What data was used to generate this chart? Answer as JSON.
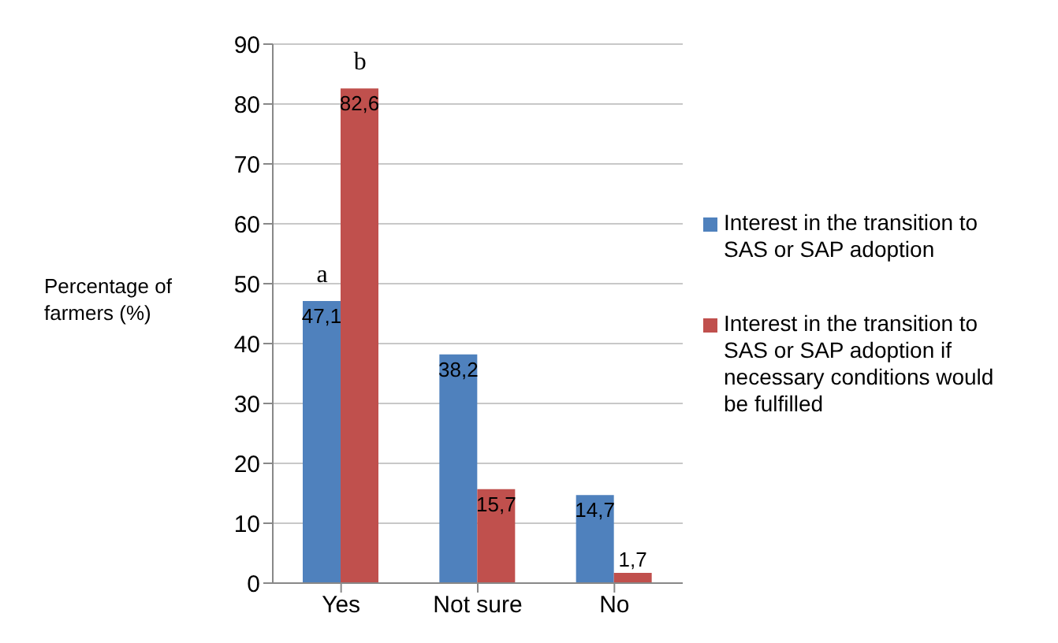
{
  "chart_data": {
    "type": "bar",
    "ylabel": "Percentage of farmers (%)",
    "categories": [
      "Yes",
      "Not sure",
      "No"
    ],
    "series": [
      {
        "name": "Interest in the transition to SAS or SAP adoption",
        "color": "#4f81bd",
        "values": [
          47.1,
          38.2,
          14.7
        ],
        "value_labels": [
          "47,1",
          "38,2",
          "14,7"
        ]
      },
      {
        "name": "Interest in the transition to SAS or SAP adoption if necessary conditions would be fulfilled",
        "color": "#c0504d",
        "values": [
          82.6,
          15.7,
          1.7
        ],
        "value_labels": [
          "82,6",
          "15,7",
          "1,7"
        ]
      }
    ],
    "annotations": [
      {
        "text": "a",
        "x": "Yes",
        "y": 47.1
      },
      {
        "text": "b",
        "x": "Yes",
        "y": 82.6
      }
    ],
    "ylim": [
      0,
      90
    ],
    "yticks": [
      0,
      10,
      20,
      30,
      40,
      50,
      60,
      70,
      80,
      90
    ],
    "grid": "y",
    "legend": "right"
  }
}
